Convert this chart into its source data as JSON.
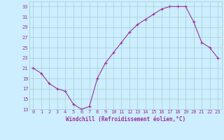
{
  "x": [
    0,
    1,
    2,
    3,
    4,
    5,
    6,
    7,
    8,
    9,
    10,
    11,
    12,
    13,
    14,
    15,
    16,
    17,
    18,
    19,
    20,
    21,
    22,
    23
  ],
  "y": [
    21,
    20,
    18,
    17,
    16.5,
    14,
    13,
    13.5,
    19,
    22,
    24,
    26,
    28,
    29.5,
    30.5,
    31.5,
    32.5,
    33,
    33,
    33,
    30,
    26,
    25,
    23
  ],
  "line_color": "#993399",
  "marker": "+",
  "marker_size": 3,
  "marker_lw": 0.8,
  "line_width": 0.8,
  "bg_color": "#cceeff",
  "grid_color": "#aacccc",
  "xlabel": "Windchill (Refroidissement éolien,°C)",
  "xlabel_color": "#993399",
  "tick_color": "#993399",
  "ylim": [
    13,
    34
  ],
  "xlim": [
    -0.5,
    23.5
  ],
  "yticks": [
    13,
    15,
    17,
    19,
    21,
    23,
    25,
    27,
    29,
    31,
    33
  ],
  "xticks": [
    0,
    1,
    2,
    3,
    4,
    5,
    6,
    7,
    8,
    9,
    10,
    11,
    12,
    13,
    14,
    15,
    16,
    17,
    18,
    19,
    20,
    21,
    22,
    23
  ],
  "tick_fontsize": 5.0,
  "xlabel_fontsize": 5.5
}
